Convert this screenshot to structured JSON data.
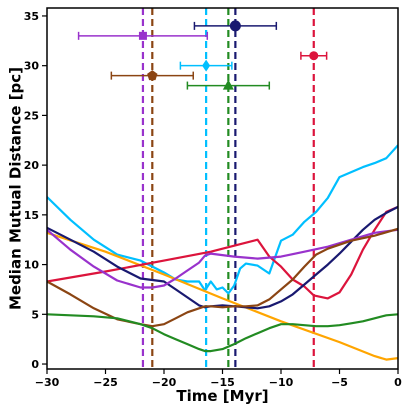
{
  "chart_data": {
    "type": "line",
    "xlabel": "Time [Myr]",
    "ylabel": "Median Mutual Distance [pc]",
    "xlim": [
      -30,
      0
    ],
    "ylim": [
      -0.5,
      35.8
    ],
    "xticks": [
      -30,
      -25,
      -20,
      -15,
      -10,
      -5,
      0
    ],
    "yticks": [
      0,
      5,
      10,
      15,
      20,
      25,
      30,
      35
    ],
    "series": [
      {
        "color": "#00bfff",
        "x": [
          -30,
          -28,
          -26,
          -24,
          -22,
          -20,
          -19,
          -18,
          -17,
          -16.5,
          -16,
          -15.5,
          -15,
          -14.5,
          -14,
          -13.5,
          -13,
          -12,
          -11,
          -10,
          -9,
          -8,
          -7,
          -6,
          -5,
          -4,
          -3,
          -2,
          -1,
          0
        ],
        "y": [
          16.8,
          14.5,
          12.5,
          11,
          10.4,
          9.2,
          8.5,
          8.3,
          8.3,
          7.4,
          8.3,
          7.5,
          7.7,
          7.1,
          7.9,
          9.6,
          10.1,
          9.9,
          9.1,
          12.4,
          13.0,
          14.3,
          15.3,
          16.7,
          18.8,
          19.3,
          19.8,
          20.2,
          20.7,
          22.0
        ]
      },
      {
        "color": "#ffa500",
        "x": [
          -30,
          -25,
          -20,
          -15,
          -10,
          -5,
          -2,
          -1,
          0
        ],
        "y": [
          13.2,
          11.3,
          9.0,
          6.6,
          4.3,
          2.2,
          0.8,
          0.45,
          0.6
        ]
      },
      {
        "color": "#dc143c",
        "x": [
          -30,
          -25,
          -20,
          -16,
          -14,
          -12,
          -11,
          -10,
          -9,
          -8,
          -7.2,
          -6,
          -5,
          -4,
          -3,
          -2,
          -1,
          0
        ],
        "y": [
          8.3,
          9.3,
          10.4,
          11.3,
          11.9,
          12.5,
          10.8,
          9.8,
          8.5,
          7.8,
          6.9,
          6.6,
          7.2,
          9.0,
          11.5,
          13.5,
          15.3,
          15.8
        ]
      },
      {
        "color": "#191970",
        "x": [
          -30,
          -28,
          -26,
          -24,
          -22,
          -20,
          -19,
          -18,
          -17,
          -16.5,
          -16,
          -15,
          -14,
          -13,
          -12,
          -11,
          -10,
          -9,
          -8,
          -7,
          -6,
          -5,
          -4,
          -3,
          -2,
          -1,
          0
        ],
        "y": [
          13.7,
          12.5,
          11.3,
          9.8,
          8.6,
          8.3,
          7.5,
          6.7,
          5.9,
          5.7,
          5.8,
          5.9,
          5.8,
          5.7,
          5.6,
          5.8,
          6.3,
          7.0,
          8.0,
          9.0,
          10.0,
          11.1,
          12.3,
          13.5,
          14.5,
          15.2,
          15.8
        ]
      },
      {
        "color": "#9932cc",
        "x": [
          -30,
          -28,
          -26,
          -24,
          -22,
          -21,
          -20,
          -19,
          -18,
          -17,
          -16.5,
          -16,
          -14,
          -12,
          -10,
          -8,
          -6,
          -4,
          -2,
          0
        ],
        "y": [
          13.5,
          11.5,
          9.8,
          8.4,
          7.7,
          7.7,
          7.9,
          8.6,
          9.4,
          10.2,
          10.9,
          11.1,
          10.8,
          10.6,
          10.8,
          11.3,
          11.8,
          12.5,
          13.2,
          13.5
        ]
      },
      {
        "color": "#8b4513",
        "x": [
          -30,
          -28,
          -26,
          -24,
          -22,
          -21,
          -20,
          -19,
          -18,
          -17,
          -16.5,
          -16,
          -15,
          -14,
          -13,
          -12,
          -11,
          -10,
          -9,
          -8,
          -7,
          -6,
          -4,
          -2,
          0
        ],
        "y": [
          8.3,
          7.0,
          5.6,
          4.5,
          4.0,
          3.8,
          4.0,
          4.6,
          5.2,
          5.6,
          5.8,
          5.8,
          5.7,
          5.8,
          5.8,
          5.9,
          6.5,
          7.5,
          8.5,
          9.8,
          11.0,
          11.6,
          12.4,
          12.9,
          13.6
        ]
      },
      {
        "color": "#228b22",
        "x": [
          -30,
          -28,
          -26,
          -24,
          -22,
          -21,
          -20,
          -19,
          -18,
          -17,
          -16.5,
          -16,
          -15,
          -14,
          -13,
          -12,
          -11,
          -10,
          -9,
          -8,
          -7,
          -6,
          -5,
          -4,
          -3,
          -2,
          -1,
          0
        ],
        "y": [
          5.0,
          4.9,
          4.8,
          4.6,
          4.0,
          3.6,
          3.0,
          2.5,
          2.0,
          1.5,
          1.3,
          1.3,
          1.5,
          2.0,
          2.6,
          3.1,
          3.6,
          4.0,
          4.0,
          3.9,
          3.8,
          3.8,
          3.9,
          4.1,
          4.3,
          4.6,
          4.9,
          5.0
        ]
      }
    ],
    "vlines": [
      {
        "x": -21.8,
        "color": "#9932cc"
      },
      {
        "x": -21.0,
        "color": "#8b4513"
      },
      {
        "x": -16.4,
        "color": "#00bfff"
      },
      {
        "x": -14.5,
        "color": "#228b22"
      },
      {
        "x": -13.9,
        "color": "#191970"
      },
      {
        "x": -7.2,
        "color": "#dc143c"
      }
    ],
    "points": [
      {
        "x": -21.8,
        "y": 33.0,
        "xerr": 5.5,
        "marker": "square",
        "color": "#9932cc"
      },
      {
        "x": -21.0,
        "y": 29.0,
        "xerr": 3.5,
        "marker": "pentagon",
        "color": "#8b4513"
      },
      {
        "x": -16.4,
        "y": 30.0,
        "xerr": 2.2,
        "marker": "diamond",
        "color": "#00bfff"
      },
      {
        "x": -14.5,
        "y": 28.0,
        "xerr": 3.5,
        "marker": "triangle",
        "color": "#228b22"
      },
      {
        "x": -13.9,
        "y": 34.0,
        "xerr": 3.5,
        "marker": "circle",
        "color": "#191970"
      },
      {
        "x": -7.2,
        "y": 31.0,
        "xerr": 1.1,
        "marker": "circle-small",
        "color": "#dc143c"
      }
    ]
  }
}
